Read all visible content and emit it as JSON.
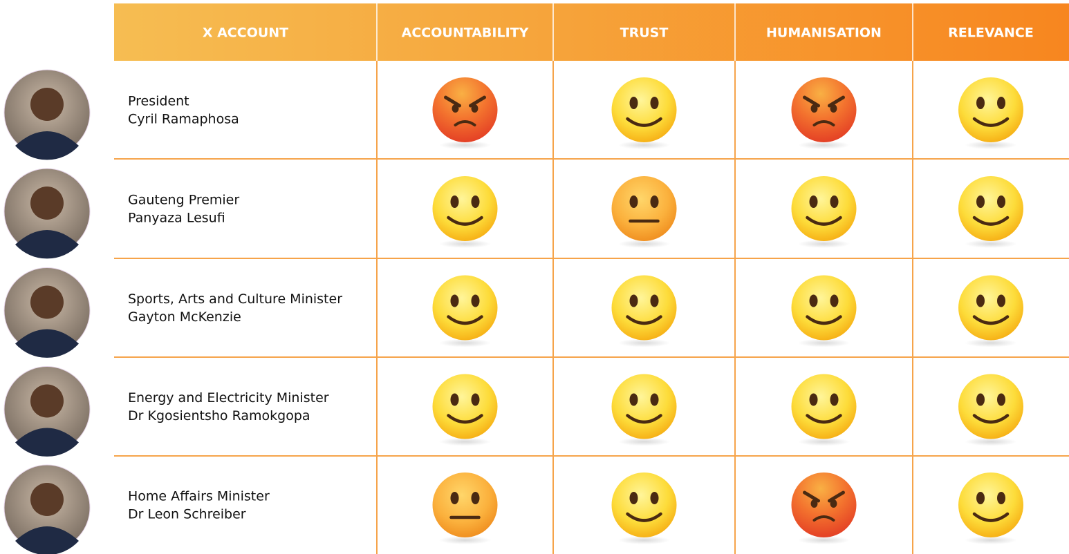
{
  "header": {
    "columns": [
      "X ACCOUNT",
      "ACCOUNTABILITY",
      "TRUST",
      "HUMANISATION",
      "RELEVANCE"
    ]
  },
  "rows": [
    {
      "title": "President",
      "name": "Cyril Ramaphosa",
      "ratings": [
        "angry",
        "happy",
        "angry",
        "happy"
      ]
    },
    {
      "title": "Gauteng Premier",
      "name": "Panyaza Lesufi",
      "ratings": [
        "happy",
        "neutral",
        "happy",
        "happy"
      ]
    },
    {
      "title": "Sports, Arts and Culture Minister",
      "name": "Gayton McKenzie",
      "ratings": [
        "happy",
        "happy",
        "happy",
        "happy"
      ]
    },
    {
      "title": "Energy and Electricity Minister",
      "name": "Dr Kgosientsho Ramokgopa",
      "ratings": [
        "happy",
        "happy",
        "happy",
        "happy"
      ]
    },
    {
      "title": "Home Affairs Minister",
      "name": "Dr Leon Schreiber",
      "ratings": [
        "neutral",
        "happy",
        "angry",
        "happy"
      ]
    }
  ]
}
